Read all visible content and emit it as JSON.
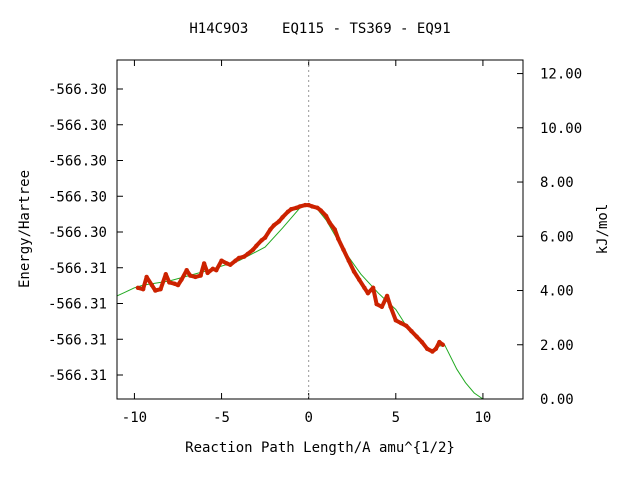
{
  "chart_data": {
    "type": "line",
    "title": "H14C9O3    EQ115 - TS369 - EQ91",
    "xlabel": "Reaction Path Length/A amu^{1/2}",
    "ylabel": "Energy/Hartree",
    "y2label": "kJ/mol",
    "xlim": [
      -11,
      12.3
    ],
    "ylim": [
      -566.3135,
      -566.3085
    ],
    "y2lim": [
      0.0,
      12.5
    ],
    "x_ticks": [
      -10,
      -5,
      0,
      5,
      10
    ],
    "x_tick_labels": [
      "-10",
      "-5",
      "0",
      "5",
      "10"
    ],
    "y_tick_labels": [
      "-566.30",
      "-566.30",
      "-566.30",
      "-566.30",
      "-566.30",
      "-566.31",
      "-566.31",
      "-566.31",
      "-566.31"
    ],
    "y2_ticks": [
      0,
      2,
      4,
      6,
      8,
      10,
      12
    ],
    "y2_tick_labels": [
      "0.00",
      "2.00",
      "4.00",
      "6.00",
      "8.00",
      "10.00",
      "12.00"
    ],
    "ts_marker_x": 0,
    "colors": {
      "frame": "#000000",
      "irc_line": "#22aa22",
      "irc_points": "#cc2200",
      "ts_line": "#999999"
    },
    "series": [
      {
        "style": "line",
        "x": [
          -11,
          -10.5,
          -10,
          -9.5,
          -8,
          -6,
          -4,
          -2.5,
          -1.5,
          -0.5,
          0,
          0.5,
          1,
          2,
          3,
          4,
          5,
          5.5,
          6,
          6.5,
          7,
          7.5,
          7.8,
          8.5,
          9,
          9.5,
          10
        ],
        "y": [
          3.8,
          3.95,
          4.1,
          4.2,
          4.35,
          4.7,
          5.1,
          5.6,
          6.3,
          7.05,
          7.15,
          7.0,
          6.6,
          5.5,
          4.6,
          3.9,
          3.3,
          2.8,
          2.4,
          2.1,
          1.75,
          1.95,
          2.0,
          1.1,
          0.6,
          0.22,
          0.0
        ]
      },
      {
        "style": "points",
        "x": [
          -9.8,
          -9.5,
          -9.3,
          -9.0,
          -8.8,
          -8.5,
          -8.2,
          -8.0,
          -7.7,
          -7.5,
          -7.3,
          -7.0,
          -6.8,
          -6.5,
          -6.2,
          -6.0,
          -5.8,
          -5.5,
          -5.3,
          -5.0,
          -4.7,
          -4.5,
          -4.2,
          -4.0,
          -3.7,
          -3.5,
          -3.2,
          -3.0,
          -2.7,
          -2.5,
          -2.2,
          -2.0,
          -1.7,
          -1.5,
          -1.2,
          -1.0,
          -0.7,
          -0.5,
          -0.2,
          0.0,
          0.2,
          0.5,
          0.7,
          1.0,
          1.2,
          1.5,
          1.7,
          2.0,
          2.3,
          2.6,
          2.9,
          3.2,
          3.4,
          3.7,
          3.9,
          4.2,
          4.5,
          4.7,
          5.0,
          5.3,
          5.6,
          5.9,
          6.2,
          6.5,
          6.8,
          7.1,
          7.3,
          7.5,
          7.7
        ],
        "y": [
          4.1,
          4.05,
          4.5,
          4.2,
          4.0,
          4.05,
          4.6,
          4.3,
          4.25,
          4.2,
          4.4,
          4.75,
          4.55,
          4.5,
          4.55,
          5.0,
          4.65,
          4.8,
          4.75,
          5.1,
          5.0,
          4.95,
          5.1,
          5.2,
          5.25,
          5.35,
          5.5,
          5.65,
          5.85,
          5.95,
          6.25,
          6.4,
          6.55,
          6.7,
          6.9,
          7.0,
          7.05,
          7.1,
          7.15,
          7.15,
          7.1,
          7.05,
          6.95,
          6.75,
          6.5,
          6.25,
          5.9,
          5.5,
          5.1,
          4.7,
          4.4,
          4.1,
          3.9,
          4.1,
          3.5,
          3.4,
          3.8,
          3.4,
          2.9,
          2.8,
          2.7,
          2.5,
          2.3,
          2.1,
          1.85,
          1.75,
          1.85,
          2.1,
          2.0
        ]
      }
    ]
  }
}
